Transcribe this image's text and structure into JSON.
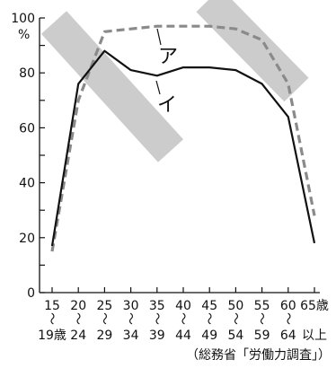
{
  "chart_data": {
    "type": "line",
    "ylim": [
      0,
      100
    ],
    "yticks": [
      0,
      20,
      40,
      60,
      80,
      100
    ],
    "y_unit": "%",
    "grid": false,
    "legend": "direct-labels",
    "categories": [
      {
        "top": "15",
        "tilde": "〜",
        "bottom": "19歳"
      },
      {
        "top": "20",
        "tilde": "〜",
        "bottom": "24"
      },
      {
        "top": "25",
        "tilde": "〜",
        "bottom": "29"
      },
      {
        "top": "30",
        "tilde": "〜",
        "bottom": "34"
      },
      {
        "top": "35",
        "tilde": "〜",
        "bottom": "39"
      },
      {
        "top": "40",
        "tilde": "〜",
        "bottom": "44"
      },
      {
        "top": "45",
        "tilde": "〜",
        "bottom": "49"
      },
      {
        "top": "50",
        "tilde": "〜",
        "bottom": "54"
      },
      {
        "top": "55",
        "tilde": "〜",
        "bottom": "59"
      },
      {
        "top": "60",
        "tilde": "〜",
        "bottom": "64"
      },
      {
        "top": "65歳",
        "tilde": "",
        "bottom": "以上"
      }
    ],
    "series": [
      {
        "name": "ア",
        "style": "dashed",
        "color": "#8a8a8a",
        "values": [
          15,
          70,
          95,
          96,
          97,
          97,
          97,
          96,
          92,
          76,
          28
        ]
      },
      {
        "name": "イ",
        "style": "solid",
        "color": "#111111",
        "values": [
          17,
          76,
          88,
          81,
          79,
          82,
          82,
          81,
          76,
          64,
          18
        ]
      }
    ],
    "source": "（総務省「労働力調査」）"
  },
  "colors": {
    "watermark": "#cccccc",
    "axis": "#111111"
  }
}
